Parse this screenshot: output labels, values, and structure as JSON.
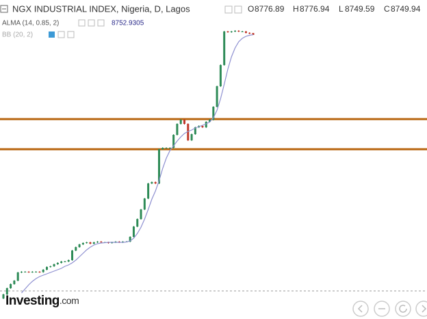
{
  "chart_data": {
    "type": "candlestick",
    "title": "NGX INDUSTRIAL INDEX, Nigeria, D, Lagos",
    "ohlc_labels": [
      "O",
      "H",
      "L",
      "C"
    ],
    "open": [
      4900,
      4960,
      5050,
      5110,
      5160,
      5280,
      5290,
      5290,
      5285,
      5290,
      5290,
      5285,
      5320,
      5360,
      5370,
      5400,
      5420,
      5440,
      5440,
      5460,
      5600,
      5650,
      5690,
      5710,
      5720,
      5700,
      5720,
      5730,
      5720,
      5720,
      5710,
      5720,
      5730,
      5720,
      5730,
      5730,
      5800,
      5950,
      6060,
      6200,
      6360,
      6580,
      6600,
      6580,
      7080,
      7100,
      7100,
      7100,
      7290,
      7450,
      7510,
      7450,
      7210,
      7300,
      7400,
      7420,
      7400,
      7480,
      7510,
      7700,
      8000,
      8310,
      8800,
      8790,
      8800,
      8810,
      8800,
      8800,
      8780,
      8776.89
    ],
    "high": [
      4970,
      5060,
      5120,
      5170,
      5290,
      5300,
      5300,
      5300,
      5300,
      5300,
      5300,
      5330,
      5370,
      5380,
      5410,
      5430,
      5450,
      5450,
      5470,
      5610,
      5660,
      5700,
      5720,
      5730,
      5730,
      5730,
      5740,
      5740,
      5730,
      5730,
      5730,
      5740,
      5740,
      5740,
      5740,
      5810,
      5960,
      6070,
      6210,
      6370,
      6590,
      6610,
      6610,
      7090,
      7110,
      7110,
      7110,
      7300,
      7460,
      7520,
      7520,
      7460,
      7310,
      7410,
      7430,
      7430,
      7490,
      7520,
      7710,
      8010,
      8320,
      8810,
      8810,
      8810,
      8820,
      8820,
      8810,
      8810,
      8790,
      8776.94
    ],
    "low": [
      4890,
      4950,
      5040,
      5100,
      5150,
      5270,
      5280,
      5275,
      5275,
      5280,
      5275,
      5275,
      5310,
      5350,
      5360,
      5390,
      5410,
      5430,
      5430,
      5450,
      5590,
      5640,
      5680,
      5700,
      5690,
      5690,
      5710,
      5710,
      5710,
      5700,
      5700,
      5710,
      5710,
      5710,
      5720,
      5720,
      5790,
      5940,
      6050,
      6190,
      6350,
      6570,
      6570,
      6570,
      7070,
      7090,
      7090,
      7090,
      7280,
      7440,
      7440,
      7200,
      7200,
      7290,
      7390,
      7390,
      7390,
      7470,
      7500,
      7690,
      7990,
      8300,
      8780,
      8780,
      8790,
      8790,
      8790,
      8770,
      8760,
      8749.59
    ],
    "close": [
      4960,
      5050,
      5110,
      5160,
      5280,
      5290,
      5290,
      5285,
      5290,
      5290,
      5285,
      5320,
      5360,
      5370,
      5400,
      5420,
      5440,
      5440,
      5460,
      5600,
      5650,
      5690,
      5710,
      5720,
      5700,
      5720,
      5730,
      5720,
      5720,
      5710,
      5720,
      5730,
      5720,
      5730,
      5730,
      5800,
      5950,
      6060,
      6200,
      6360,
      6580,
      6600,
      6580,
      7080,
      7100,
      7100,
      7100,
      7290,
      7450,
      7510,
      7450,
      7210,
      7300,
      7400,
      7420,
      7400,
      7480,
      7510,
      7700,
      8000,
      8310,
      8800,
      8790,
      8800,
      8810,
      8800,
      8800,
      8780,
      8770,
      8749.94
    ],
    "up_color": "#2e8b57",
    "down_color": "#c0392b",
    "series": [
      {
        "name": "ALMA (14, 0.85, 2)",
        "color": "#8d8fd0",
        "values": [
          null,
          null,
          null,
          null,
          null,
          4980,
          5040,
          5100,
          5150,
          5190,
          5220,
          5240,
          5260,
          5280,
          5300,
          5320,
          5340,
          5370,
          5390,
          5420,
          5460,
          5510,
          5560,
          5610,
          5650,
          5680,
          5700,
          5710,
          5715,
          5720,
          5720,
          5720,
          5720,
          5720,
          5725,
          5740,
          5780,
          5850,
          5940,
          6060,
          6200,
          6350,
          6470,
          6620,
          6800,
          6950,
          7060,
          7130,
          7200,
          7260,
          7310,
          7340,
          7360,
          7390,
          7410,
          7430,
          7450,
          7480,
          7540,
          7650,
          7820,
          8030,
          8250,
          8430,
          8560,
          8650,
          8700,
          8730,
          8745,
          8752.9305
        ]
      }
    ],
    "indicator2": "BB (20, 2)",
    "hlines": [
      7520,
      7080
    ],
    "hline_color": "#b8650f",
    "ylim": [
      4600,
      9260
    ],
    "brand": "Investing",
    "brand_suffix": ".com"
  }
}
